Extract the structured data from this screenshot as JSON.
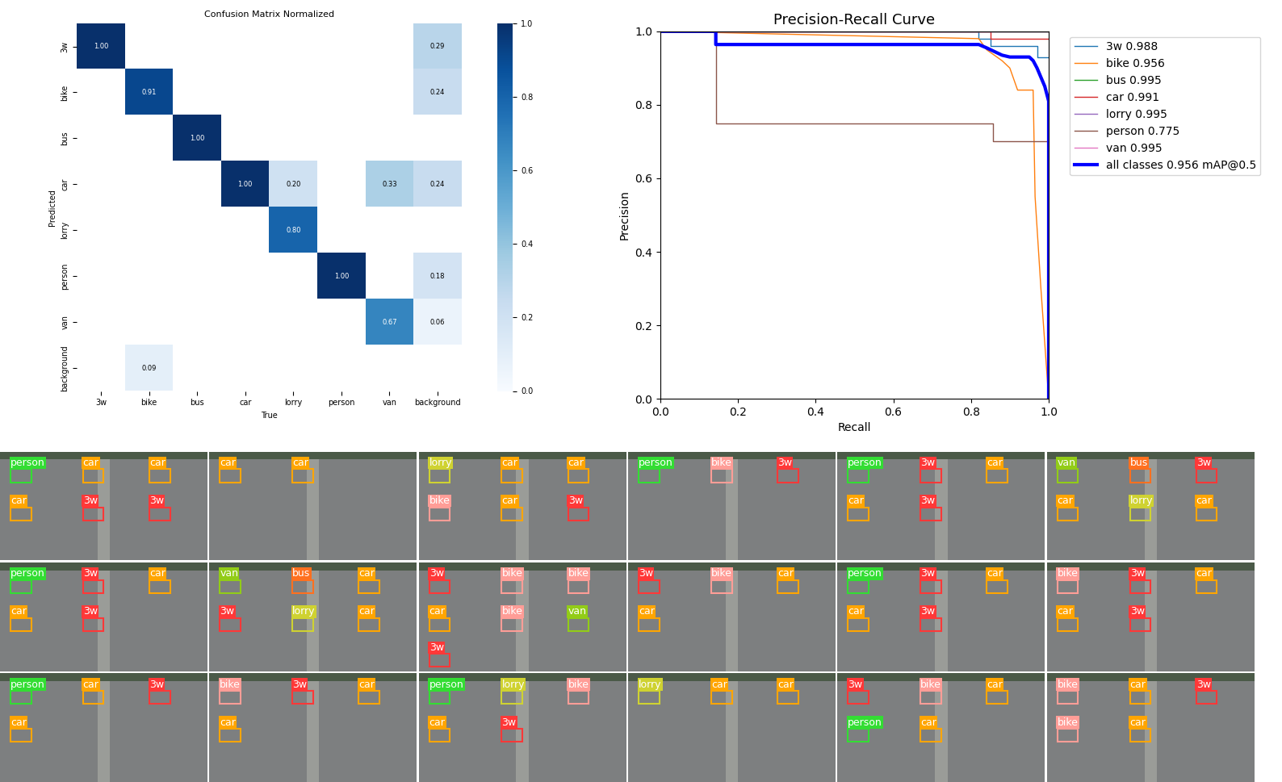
{
  "chart_data": [
    {
      "type": "heatmap",
      "title": "Confusion Matrix Normalized",
      "x_label": "True",
      "y_label": "Predicted",
      "x_categories": [
        "3w",
        "bike",
        "bus",
        "car",
        "lorry",
        "person",
        "van",
        "background"
      ],
      "y_categories": [
        "3w",
        "bike",
        "bus",
        "car",
        "lorry",
        "person",
        "van",
        "background"
      ],
      "cells": [
        [
          1.0,
          null,
          null,
          null,
          null,
          null,
          null,
          0.29
        ],
        [
          null,
          0.91,
          null,
          null,
          null,
          null,
          null,
          0.24
        ],
        [
          null,
          null,
          1.0,
          null,
          null,
          null,
          null,
          null
        ],
        [
          null,
          null,
          null,
          1.0,
          0.2,
          null,
          0.33,
          0.24
        ],
        [
          null,
          null,
          null,
          null,
          0.8,
          null,
          null,
          null
        ],
        [
          null,
          null,
          null,
          null,
          null,
          1.0,
          null,
          0.18
        ],
        [
          null,
          null,
          null,
          null,
          null,
          null,
          0.67,
          0.06
        ],
        [
          null,
          0.09,
          null,
          null,
          null,
          null,
          null,
          null
        ]
      ],
      "value_labels": [
        [
          "1.00",
          null,
          null,
          null,
          null,
          null,
          null,
          "0.29"
        ],
        [
          null,
          "0.91",
          null,
          null,
          null,
          null,
          null,
          "0.24"
        ],
        [
          null,
          null,
          "1.00",
          null,
          null,
          null,
          null,
          null
        ],
        [
          null,
          null,
          null,
          "1.00",
          "0.20",
          null,
          "0.33",
          "0.24"
        ],
        [
          null,
          null,
          null,
          null,
          "0.80",
          null,
          null,
          null
        ],
        [
          null,
          null,
          null,
          null,
          null,
          "1.00",
          null,
          "0.18"
        ],
        [
          null,
          null,
          null,
          null,
          null,
          null,
          "0.67",
          "0.06"
        ],
        [
          null,
          "0.09",
          null,
          null,
          null,
          null,
          null,
          null
        ]
      ],
      "colorbar_lim": [
        0.0,
        1.0
      ],
      "colorbar_ticks": [
        {
          "value": 0.0,
          "label": "0.0"
        },
        {
          "value": 0.2,
          "label": "0.2"
        },
        {
          "value": 0.4,
          "label": "0.4"
        },
        {
          "value": 0.6,
          "label": "0.6"
        },
        {
          "value": 0.8,
          "label": "0.8"
        },
        {
          "value": 1.0,
          "label": "1.0"
        }
      ],
      "data_labels": true
    },
    {
      "type": "line",
      "title": "Precision-Recall Curve",
      "x_label": "Recall",
      "y_label": "Precision",
      "xlim": [
        0.0,
        1.0
      ],
      "ylim": [
        0.0,
        1.0
      ],
      "xticks": [
        {
          "value": 0.0,
          "label": "0.0"
        },
        {
          "value": 0.2,
          "label": "0.2"
        },
        {
          "value": 0.4,
          "label": "0.4"
        },
        {
          "value": 0.6,
          "label": "0.6"
        },
        {
          "value": 0.8,
          "label": "0.8"
        },
        {
          "value": 1.0,
          "label": "1.0"
        }
      ],
      "yticks": [
        {
          "value": 0.0,
          "label": "0.0"
        },
        {
          "value": 0.2,
          "label": "0.2"
        },
        {
          "value": 0.4,
          "label": "0.4"
        },
        {
          "value": 0.6,
          "label": "0.6"
        },
        {
          "value": 0.8,
          "label": "0.8"
        },
        {
          "value": 1.0,
          "label": "1.0"
        }
      ],
      "legend": "upper left",
      "series": [
        {
          "name": "3w 0.988",
          "color": "#1f77b4",
          "x": [
            0.0,
            0.82,
            0.82,
            0.85,
            0.85,
            0.97,
            0.97,
            1.0
          ],
          "values": [
            1.0,
            1.0,
            0.98,
            0.98,
            0.96,
            0.96,
            0.93,
            0.93
          ]
        },
        {
          "name": "bike 0.956",
          "color": "#ff7f0e",
          "x": [
            0.0,
            0.82,
            0.84,
            0.88,
            0.9,
            0.92,
            0.96,
            0.965,
            0.98,
            1.0
          ],
          "values": [
            1.0,
            0.98,
            0.95,
            0.92,
            0.9,
            0.84,
            0.84,
            0.55,
            0.3,
            0.0
          ]
        },
        {
          "name": "bus 0.995",
          "color": "#2ca02c",
          "x": [
            0.0,
            1.0
          ],
          "values": [
            1.0,
            1.0
          ]
        },
        {
          "name": "car 0.991",
          "color": "#d62728",
          "x": [
            0.0,
            0.85,
            0.85,
            1.0
          ],
          "values": [
            1.0,
            1.0,
            0.98,
            0.98
          ]
        },
        {
          "name": "lorry 0.995",
          "color": "#9467bd",
          "x": [
            0.0,
            1.0
          ],
          "values": [
            1.0,
            1.0
          ]
        },
        {
          "name": "person 0.775",
          "color": "#8c564b",
          "x": [
            0.0,
            0.143,
            0.143,
            0.857,
            0.857,
            1.0
          ],
          "values": [
            1.0,
            1.0,
            0.75,
            0.75,
            0.7,
            0.7
          ]
        },
        {
          "name": "van 0.995",
          "color": "#e377c2",
          "x": [
            0.0,
            1.0
          ],
          "values": [
            1.0,
            1.0
          ]
        },
        {
          "name": "all classes 0.956 mAP@0.5",
          "color": "#0000ff",
          "x": [
            0.0,
            0.143,
            0.143,
            0.82,
            0.84,
            0.86,
            0.88,
            0.9,
            0.95,
            0.96,
            0.97,
            0.99,
            1.0,
            1.0
          ],
          "values": [
            1.0,
            1.0,
            0.964,
            0.964,
            0.955,
            0.945,
            0.935,
            0.93,
            0.93,
            0.92,
            0.9,
            0.85,
            0.81,
            0.0
          ]
        }
      ]
    }
  ],
  "image_grid": {
    "class_colors": {
      "person": "#33dd33",
      "car": "#ffa500",
      "3w": "#ff3838",
      "bike": "#ff9d97",
      "lorry": "#cfd231",
      "van": "#92cc17",
      "bus": "#ff701f"
    },
    "tiles": [
      [
        [
          "person",
          "car",
          "car",
          "car",
          "3w",
          "3w"
        ],
        [
          "car",
          "car"
        ],
        [
          "lorry",
          "car",
          "car",
          "bike",
          "car",
          "3w"
        ],
        [
          "person",
          "bike",
          "3w"
        ],
        [
          "person",
          "3w",
          "car",
          "car",
          "3w"
        ],
        [
          "van",
          "bus",
          "3w",
          "car",
          "lorry",
          "car"
        ]
      ],
      [
        [
          "person",
          "3w",
          "car",
          "car",
          "3w"
        ],
        [
          "van",
          "bus",
          "car",
          "3w",
          "lorry",
          "car"
        ],
        [
          "3w",
          "bike",
          "bike",
          "car",
          "bike",
          "van",
          "3w"
        ],
        [
          "3w",
          "bike",
          "car",
          "car"
        ],
        [
          "person",
          "3w",
          "car",
          "car",
          "3w"
        ],
        [
          "bike",
          "3w",
          "car",
          "car",
          "3w"
        ]
      ],
      [
        [
          "person",
          "car",
          "3w",
          "car"
        ],
        [
          "bike",
          "3w",
          "car",
          "car"
        ],
        [
          "person",
          "lorry",
          "bike",
          "car",
          "3w"
        ],
        [
          "lorry",
          "car",
          "car"
        ],
        [
          "3w",
          "bike",
          "car",
          "person",
          "car"
        ],
        [
          "bike",
          "car",
          "3w",
          "bike",
          "car"
        ]
      ]
    ]
  }
}
